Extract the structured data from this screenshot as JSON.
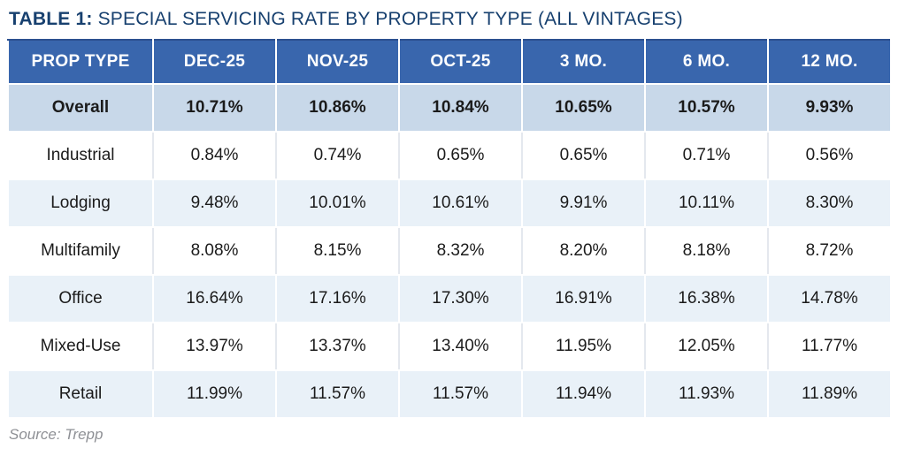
{
  "title": {
    "label": "TABLE 1:",
    "text": " SPECIAL SERVICING RATE BY PROPERTY TYPE (ALL VINTAGES)"
  },
  "source": "Source: Trepp",
  "colors": {
    "header_bg": "#3966ad",
    "header_top_border": "#2c5090",
    "header_text": "#ffffff",
    "overall_row_bg": "#c8d8e9",
    "alt_row_bg": "#e9f1f8",
    "white_row_bg": "#ffffff",
    "title_color": "#17406f",
    "source_color": "#8e9095",
    "body_text": "#1b1b1b"
  },
  "chart_data": {
    "type": "table",
    "title": "TABLE 1: SPECIAL SERVICING RATE BY PROPERTY TYPE (ALL VINTAGES)",
    "columns": [
      "PROP TYPE",
      "DEC-25",
      "NOV-25",
      "OCT-25",
      "3 MO.",
      "6 MO.",
      "12 MO."
    ],
    "rows": [
      {
        "label": "Overall",
        "style": "overall",
        "values": [
          "10.71%",
          "10.86%",
          "10.84%",
          "10.65%",
          "10.57%",
          "9.93%"
        ]
      },
      {
        "label": "Industrial",
        "style": "white",
        "values": [
          "0.84%",
          "0.74%",
          "0.65%",
          "0.65%",
          "0.71%",
          "0.56%"
        ]
      },
      {
        "label": "Lodging",
        "style": "light",
        "values": [
          "9.48%",
          "10.01%",
          "10.61%",
          "9.91%",
          "10.11%",
          "8.30%"
        ]
      },
      {
        "label": "Multifamily",
        "style": "white",
        "values": [
          "8.08%",
          "8.15%",
          "8.32%",
          "8.20%",
          "8.18%",
          "8.72%"
        ]
      },
      {
        "label": "Office",
        "style": "light",
        "values": [
          "16.64%",
          "17.16%",
          "17.30%",
          "16.91%",
          "16.38%",
          "14.78%"
        ]
      },
      {
        "label": "Mixed-Use",
        "style": "white",
        "values": [
          "13.97%",
          "13.37%",
          "13.40%",
          "11.95%",
          "12.05%",
          "11.77%"
        ]
      },
      {
        "label": "Retail",
        "style": "light",
        "values": [
          "11.99%",
          "11.57%",
          "11.57%",
          "11.94%",
          "11.93%",
          "11.89%"
        ]
      }
    ]
  }
}
